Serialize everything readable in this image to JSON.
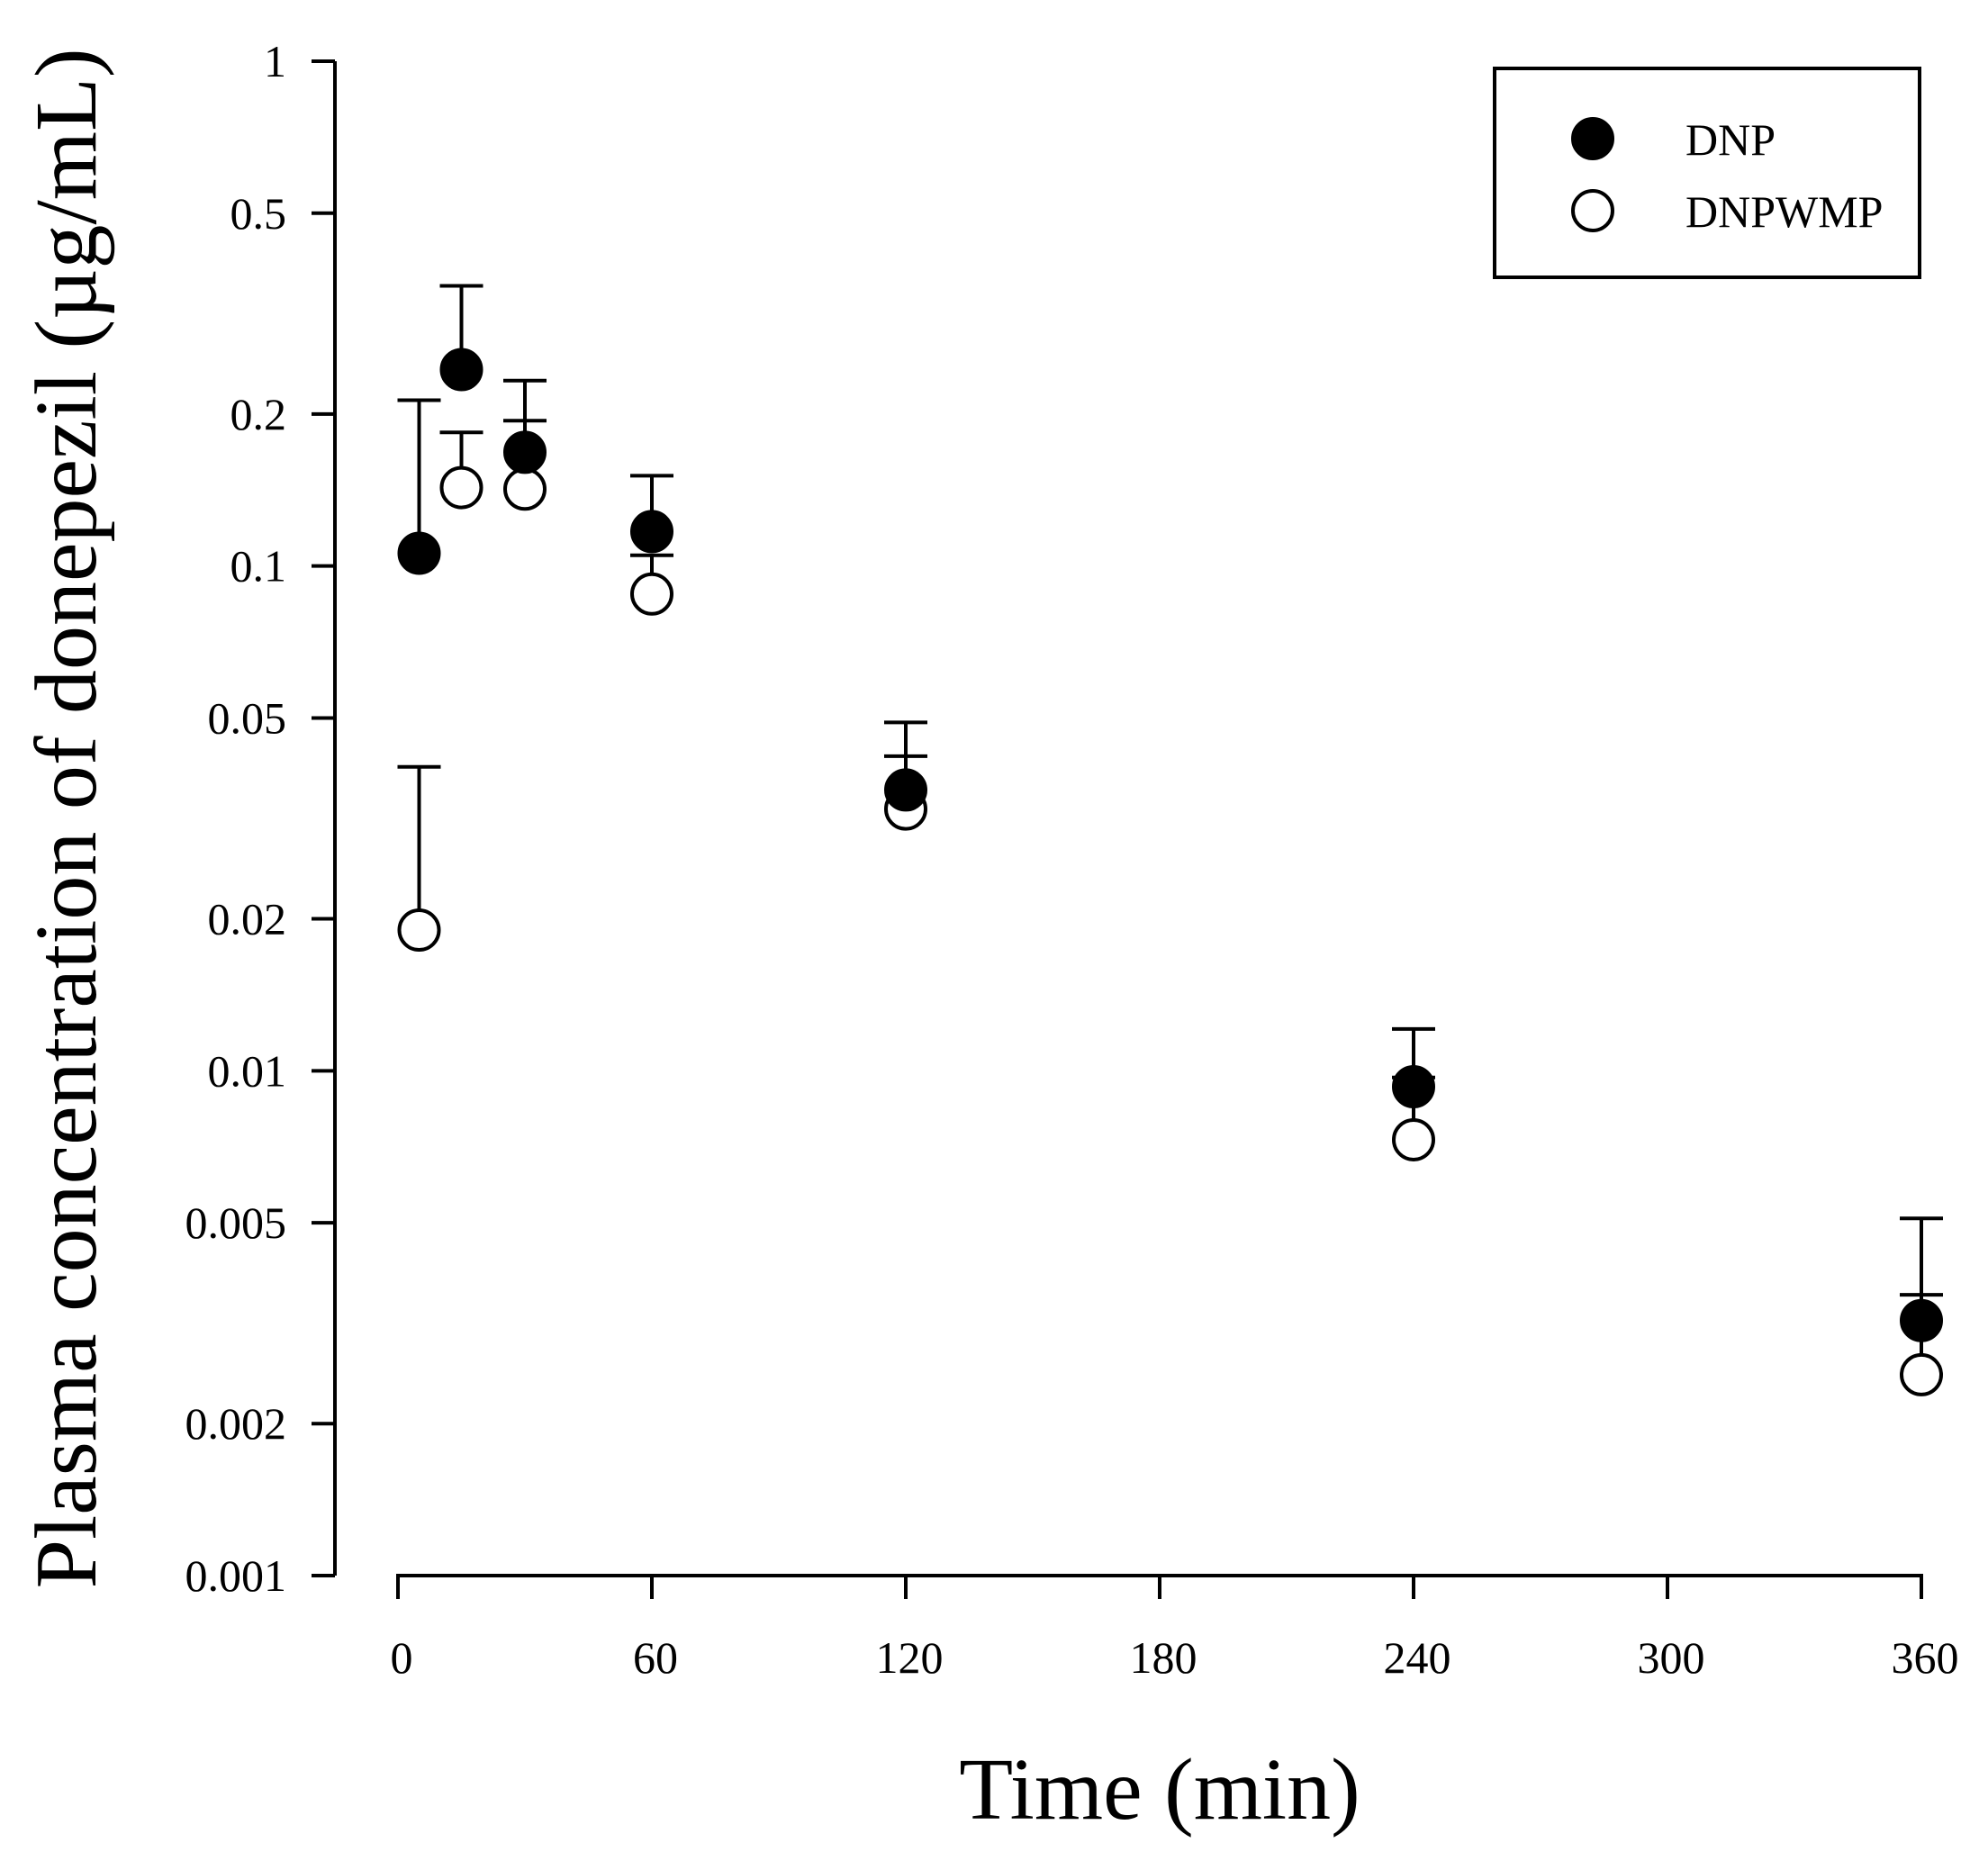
{
  "chart_data": {
    "type": "scatter",
    "title": "",
    "xlabel": "Time (min)",
    "ylabel": "Plasma concentration of donepezil (µg/mL)",
    "xlim": [
      0,
      360
    ],
    "ylim": [
      0.001,
      1
    ],
    "yscale": "log",
    "x_ticks": [
      0,
      60,
      120,
      180,
      240,
      300,
      360
    ],
    "x_tick_labels": [
      "0",
      "60",
      "120",
      "180",
      "240",
      "300",
      "360"
    ],
    "y_ticks": [
      1,
      0.5,
      0.2,
      0.1,
      0.05,
      0.02,
      0.01,
      0.005,
      0.002,
      0.001
    ],
    "y_tick_labels": [
      "1",
      "0.5",
      "0.2",
      "0.1",
      "0.05",
      "0.02",
      "0.01",
      "0.005",
      "0.002",
      "0.001"
    ],
    "grid": false,
    "legend_position": "top-right",
    "series": [
      {
        "name": "DNP",
        "marker": "filled-circle",
        "color": "#000000",
        "x": [
          5,
          15,
          30,
          60,
          120,
          240,
          360
        ],
        "values": [
          0.106,
          0.245,
          0.168,
          0.117,
          0.036,
          0.0093,
          0.0032
        ],
        "error_upper": [
          0.213,
          0.359,
          0.233,
          0.151,
          0.049,
          0.0121,
          0.0051
        ]
      },
      {
        "name": "DNPWMP",
        "marker": "open-circle",
        "color": "#000000",
        "x": [
          5,
          15,
          30,
          60,
          120,
          240,
          360
        ],
        "values": [
          0.019,
          0.143,
          0.142,
          0.088,
          0.033,
          0.0073,
          0.0025
        ],
        "error_upper": [
          0.04,
          0.184,
          0.194,
          0.105,
          0.042,
          0.0097,
          0.0036
        ]
      }
    ]
  }
}
